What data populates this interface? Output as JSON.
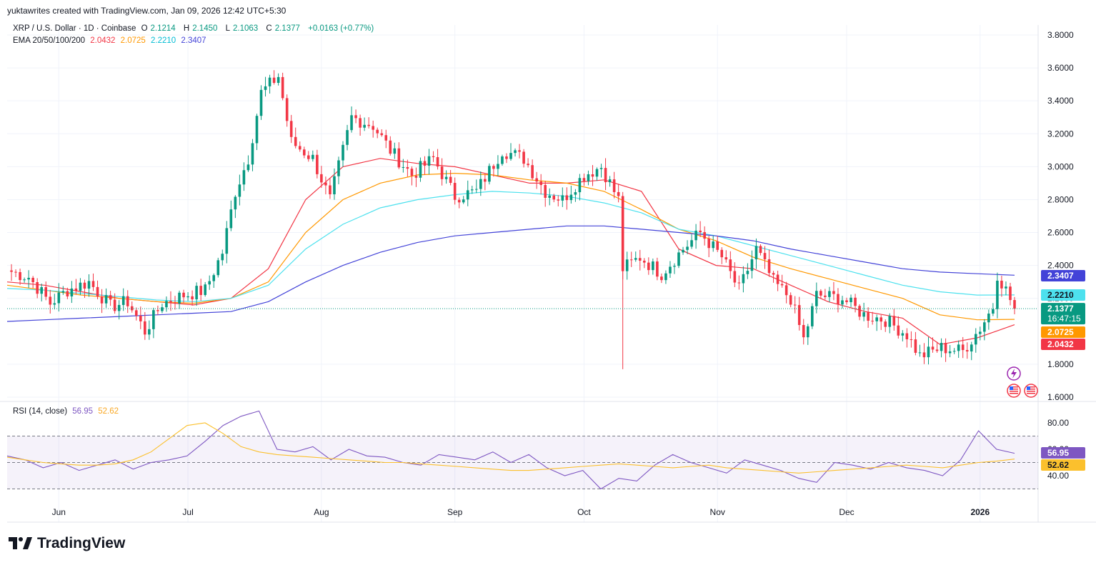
{
  "header": {
    "attribution": "yuktawrites created with TradingView.com, Jan 09, 2026 12:42 UTC+5:30"
  },
  "legend": {
    "symbol": "XRP / U.S. Dollar · 1D · Coinbase",
    "open_label": "O",
    "open": "2.1214",
    "high_label": "H",
    "high": "2.1450",
    "low_label": "L",
    "low": "2.1063",
    "close_label": "C",
    "close": "2.1377",
    "change": "+0.0163 (+0.77%)",
    "ema_title": "EMA 20/50/100/200",
    "ema20": "2.0432",
    "ema50": "2.0725",
    "ema100": "2.2210",
    "ema200": "2.3407",
    "rsi_title": "RSI (14, close)",
    "rsi": "56.95",
    "rsi_ma": "52.62"
  },
  "colors": {
    "up": "#089981",
    "down": "#F23645",
    "ema20": "#F23645",
    "ema50": "#FF9800",
    "ema100": "#4DE1EE",
    "ema200": "#4343D8",
    "rsi": "#7E57C2",
    "rsi_ma": "#FBC02D",
    "text": "#131722",
    "grid": "#F0F3FA",
    "change": "#089981"
  },
  "badges": {
    "ema200": "2.3407",
    "ema100": "2.2210",
    "price": "2.1377",
    "countdown": "16:47:15",
    "ema50": "2.0725",
    "ema20": "2.0432",
    "rsi": "56.95",
    "rsi_ma": "52.62"
  },
  "brand": {
    "name": "TradingView",
    "icon": "tradingview-logo-icon"
  },
  "event_icons": [
    "lightning-icon",
    "us-flag-icon",
    "us-flag-icon"
  ],
  "chart_data": [
    {
      "type": "candlestick",
      "title": "XRP / U.S. Dollar · 1D · Coinbase",
      "y_axis_ticks": [
        "3.8000",
        "3.6000",
        "3.4000",
        "3.2000",
        "3.0000",
        "2.8000",
        "2.6000",
        "2.4000",
        "2.2000",
        "1.8000",
        "1.6000"
      ],
      "ylim": [
        1.6,
        3.8
      ],
      "x_axis_labels": [
        "Jun",
        "Jul",
        "Aug",
        "Sep",
        "Oct",
        "Nov",
        "Dec",
        "2026"
      ],
      "last_close": 2.1377,
      "close_path": [
        {
          "date": "2025-05-20",
          "close": 2.37
        },
        {
          "date": "2025-05-25",
          "close": 2.33
        },
        {
          "date": "2025-05-30",
          "close": 2.17
        },
        {
          "date": "2025-06-03",
          "close": 2.25
        },
        {
          "date": "2025-06-08",
          "close": 2.3
        },
        {
          "date": "2025-06-13",
          "close": 2.15
        },
        {
          "date": "2025-06-17",
          "close": 2.18
        },
        {
          "date": "2025-06-21",
          "close": 2.0
        },
        {
          "date": "2025-06-25",
          "close": 2.17
        },
        {
          "date": "2025-06-30",
          "close": 2.22
        },
        {
          "date": "2025-07-05",
          "close": 2.25
        },
        {
          "date": "2025-07-09",
          "close": 2.48
        },
        {
          "date": "2025-07-12",
          "close": 2.85
        },
        {
          "date": "2025-07-15",
          "close": 3.05
        },
        {
          "date": "2025-07-18",
          "close": 3.45
        },
        {
          "date": "2025-07-22",
          "close": 3.55
        },
        {
          "date": "2025-07-25",
          "close": 3.15
        },
        {
          "date": "2025-07-30",
          "close": 3.05
        },
        {
          "date": "2025-08-03",
          "close": 2.8
        },
        {
          "date": "2025-08-08",
          "close": 3.3
        },
        {
          "date": "2025-08-13",
          "close": 3.25
        },
        {
          "date": "2025-08-17",
          "close": 3.1
        },
        {
          "date": "2025-08-22",
          "close": 2.95
        },
        {
          "date": "2025-08-27",
          "close": 3.05
        },
        {
          "date": "2025-09-01",
          "close": 2.82
        },
        {
          "date": "2025-09-06",
          "close": 2.85
        },
        {
          "date": "2025-09-12",
          "close": 3.1
        },
        {
          "date": "2025-09-17",
          "close": 3.05
        },
        {
          "date": "2025-09-22",
          "close": 2.85
        },
        {
          "date": "2025-09-26",
          "close": 2.8
        },
        {
          "date": "2025-10-01",
          "close": 2.95
        },
        {
          "date": "2025-10-05",
          "close": 3.0
        },
        {
          "date": "2025-10-09",
          "close": 2.8
        },
        {
          "date": "2025-10-10",
          "close": 2.38
        },
        {
          "date": "2025-10-14",
          "close": 2.45
        },
        {
          "date": "2025-10-19",
          "close": 2.35
        },
        {
          "date": "2025-10-24",
          "close": 2.5
        },
        {
          "date": "2025-10-28",
          "close": 2.6
        },
        {
          "date": "2025-11-02",
          "close": 2.45
        },
        {
          "date": "2025-11-06",
          "close": 2.25
        },
        {
          "date": "2025-11-10",
          "close": 2.5
        },
        {
          "date": "2025-11-14",
          "close": 2.3
        },
        {
          "date": "2025-11-18",
          "close": 2.2
        },
        {
          "date": "2025-11-21",
          "close": 1.95
        },
        {
          "date": "2025-11-24",
          "close": 2.22
        },
        {
          "date": "2025-11-30",
          "close": 2.2
        },
        {
          "date": "2025-12-05",
          "close": 2.1
        },
        {
          "date": "2025-12-10",
          "close": 2.07
        },
        {
          "date": "2025-12-15",
          "close": 1.98
        },
        {
          "date": "2025-12-18",
          "close": 1.85
        },
        {
          "date": "2025-12-23",
          "close": 1.9
        },
        {
          "date": "2025-12-28",
          "close": 1.88
        },
        {
          "date": "2026-01-01",
          "close": 2.02
        },
        {
          "date": "2026-01-04",
          "close": 2.15
        },
        {
          "date": "2026-01-05",
          "close": 2.35
        },
        {
          "date": "2026-01-07",
          "close": 2.25
        },
        {
          "date": "2026-01-09",
          "close": 2.1377
        }
      ],
      "ema_lines": [
        {
          "name": "EMA 20",
          "values": [
            2.3,
            2.28,
            2.24,
            2.2,
            2.18,
            2.16,
            2.2,
            2.38,
            2.8,
            3.0,
            3.05,
            3.02,
            3.0,
            2.95,
            2.9,
            2.9,
            2.92,
            2.85,
            2.5,
            2.4,
            2.38,
            2.28,
            2.18,
            2.12,
            2.08,
            1.92,
            1.96,
            2.04
          ]
        },
        {
          "name": "EMA 50",
          "values": [
            2.28,
            2.25,
            2.22,
            2.2,
            2.18,
            2.17,
            2.2,
            2.3,
            2.6,
            2.8,
            2.9,
            2.95,
            2.96,
            2.95,
            2.92,
            2.9,
            2.85,
            2.74,
            2.62,
            2.55,
            2.45,
            2.38,
            2.32,
            2.26,
            2.2,
            2.1,
            2.07,
            2.0725
          ]
        },
        {
          "name": "EMA 100",
          "values": [
            2.26,
            2.25,
            2.23,
            2.21,
            2.19,
            2.18,
            2.2,
            2.28,
            2.5,
            2.65,
            2.75,
            2.8,
            2.83,
            2.85,
            2.84,
            2.82,
            2.78,
            2.72,
            2.62,
            2.58,
            2.52,
            2.46,
            2.4,
            2.34,
            2.28,
            2.24,
            2.22,
            2.221
          ]
        },
        {
          "name": "EMA 200",
          "values": [
            2.06,
            2.07,
            2.08,
            2.09,
            2.1,
            2.11,
            2.12,
            2.18,
            2.3,
            2.4,
            2.48,
            2.54,
            2.58,
            2.6,
            2.62,
            2.64,
            2.64,
            2.62,
            2.6,
            2.58,
            2.55,
            2.5,
            2.46,
            2.42,
            2.38,
            2.36,
            2.35,
            2.3407
          ]
        }
      ]
    },
    {
      "type": "line",
      "title": "RSI (14, close)",
      "y_axis_ticks": [
        "80.00",
        "60.00",
        "40.00"
      ],
      "ylim": [
        25,
        90
      ],
      "bands": [
        70,
        50,
        30
      ],
      "series": [
        {
          "name": "RSI",
          "values": [
            55,
            52,
            46,
            50,
            44,
            48,
            52,
            45,
            50,
            52,
            55,
            66,
            78,
            85,
            89,
            60,
            58,
            62,
            52,
            60,
            55,
            54,
            50,
            48,
            56,
            54,
            52,
            58,
            50,
            56,
            46,
            40,
            44,
            30,
            38,
            36,
            48,
            56,
            50,
            46,
            42,
            52,
            48,
            44,
            38,
            35,
            50,
            48,
            45,
            50,
            46,
            44,
            40,
            52,
            74,
            60,
            56.95
          ]
        },
        {
          "name": "RSI MA",
          "values": [
            54,
            52,
            50,
            49,
            48,
            48,
            49,
            52,
            58,
            68,
            78,
            80,
            72,
            62,
            58,
            56,
            55,
            54,
            53,
            52,
            51,
            50,
            50,
            49,
            48,
            47,
            46,
            45,
            44,
            44,
            45,
            46,
            47,
            48,
            49,
            48,
            47,
            46,
            47,
            48,
            46,
            45,
            44,
            43,
            42,
            43,
            44,
            45,
            46,
            47,
            48,
            47,
            46,
            48,
            50,
            51,
            52.62
          ]
        }
      ]
    }
  ]
}
